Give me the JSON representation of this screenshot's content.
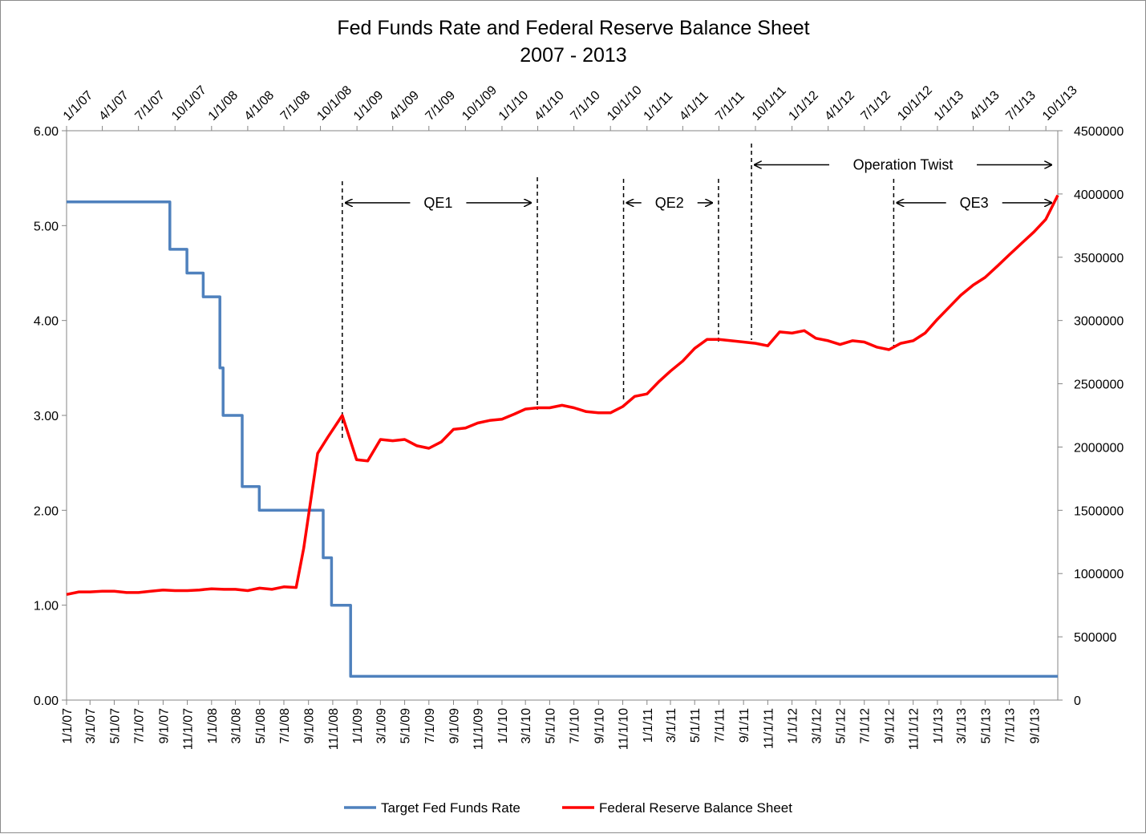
{
  "chart_data": {
    "type": "line",
    "title": "Fed Funds Rate and Federal Reserve Balance Sheet",
    "subtitle": "2007 - 2013",
    "x_start": "2007-01-01",
    "x_end": "2013-10-31",
    "x_bottom_ticks": [
      "1/1/07",
      "3/1/07",
      "5/1/07",
      "7/1/07",
      "9/1/07",
      "11/1/07",
      "1/1/08",
      "3/1/08",
      "5/1/08",
      "7/1/08",
      "9/1/08",
      "11/1/08",
      "1/1/09",
      "3/1/09",
      "5/1/09",
      "7/1/09",
      "9/1/09",
      "11/1/09",
      "1/1/10",
      "3/1/10",
      "5/1/10",
      "7/1/10",
      "9/1/10",
      "11/1/10",
      "1/1/11",
      "3/1/11",
      "5/1/11",
      "7/1/11",
      "9/1/11",
      "11/1/11",
      "1/1/12",
      "3/1/12",
      "5/1/12",
      "7/1/12",
      "9/1/12",
      "11/1/12",
      "1/1/13",
      "3/1/13",
      "5/1/13",
      "7/1/13",
      "9/1/13"
    ],
    "x_top_ticks": [
      "1/1/07",
      "4/1/07",
      "7/1/07",
      "10/1/07",
      "1/1/08",
      "4/1/08",
      "7/1/08",
      "10/1/08",
      "1/1/09",
      "4/1/09",
      "7/1/09",
      "10/1/09",
      "1/1/10",
      "4/1/10",
      "7/1/10",
      "10/1/10",
      "1/1/11",
      "4/1/11",
      "7/1/11",
      "10/1/11",
      "1/1/12",
      "4/1/12",
      "7/1/12",
      "10/1/12",
      "1/1/13",
      "4/1/13",
      "7/1/13",
      "10/1/13"
    ],
    "y_left": {
      "ticks": [
        "0.00",
        "1.00",
        "2.00",
        "3.00",
        "4.00",
        "5.00",
        "6.00"
      ],
      "ylim": [
        0,
        6
      ]
    },
    "y_right": {
      "ticks": [
        "0",
        "500000",
        "1000000",
        "1500000",
        "2000000",
        "2500000",
        "3000000",
        "3500000",
        "4000000",
        "4500000"
      ],
      "ylim": [
        0,
        4500000
      ]
    },
    "grid": false,
    "legend_position": "bottom",
    "series": [
      {
        "name": "Target Fed Funds Rate",
        "color": "#4f81bd",
        "axis": "left",
        "step": true,
        "points": [
          [
            "2007-01-01",
            5.25
          ],
          [
            "2007-09-18",
            4.75
          ],
          [
            "2007-10-31",
            4.5
          ],
          [
            "2007-12-11",
            4.25
          ],
          [
            "2008-01-22",
            3.5
          ],
          [
            "2008-01-30",
            3.0
          ],
          [
            "2008-03-18",
            2.25
          ],
          [
            "2008-04-30",
            2.0
          ],
          [
            "2008-10-08",
            1.5
          ],
          [
            "2008-10-29",
            1.0
          ],
          [
            "2008-12-16",
            0.25
          ],
          [
            "2013-10-31",
            0.25
          ]
        ]
      },
      {
        "name": "Federal Reserve Balance Sheet",
        "color": "#ff0000",
        "axis": "right",
        "step": false,
        "points": [
          [
            "2007-01-01",
            835000
          ],
          [
            "2007-02-01",
            855000
          ],
          [
            "2007-03-01",
            855000
          ],
          [
            "2007-04-01",
            860000
          ],
          [
            "2007-05-01",
            860000
          ],
          [
            "2007-06-01",
            850000
          ],
          [
            "2007-07-01",
            850000
          ],
          [
            "2007-08-01",
            860000
          ],
          [
            "2007-09-01",
            870000
          ],
          [
            "2007-10-01",
            865000
          ],
          [
            "2007-11-01",
            865000
          ],
          [
            "2007-12-01",
            870000
          ],
          [
            "2008-01-01",
            880000
          ],
          [
            "2008-02-01",
            875000
          ],
          [
            "2008-03-01",
            875000
          ],
          [
            "2008-04-01",
            865000
          ],
          [
            "2008-05-01",
            885000
          ],
          [
            "2008-06-01",
            875000
          ],
          [
            "2008-07-01",
            895000
          ],
          [
            "2008-08-01",
            890000
          ],
          [
            "2008-08-20",
            1200000
          ],
          [
            "2008-09-24",
            1950000
          ],
          [
            "2008-10-20",
            2080000
          ],
          [
            "2008-11-25",
            2250000
          ],
          [
            "2008-12-31",
            1900000
          ],
          [
            "2009-01-28",
            1890000
          ],
          [
            "2009-03-01",
            2060000
          ],
          [
            "2009-04-01",
            2050000
          ],
          [
            "2009-05-01",
            2060000
          ],
          [
            "2009-06-01",
            2010000
          ],
          [
            "2009-07-01",
            1990000
          ],
          [
            "2009-08-01",
            2040000
          ],
          [
            "2009-09-01",
            2140000
          ],
          [
            "2009-10-01",
            2150000
          ],
          [
            "2009-11-01",
            2190000
          ],
          [
            "2009-12-01",
            2210000
          ],
          [
            "2010-01-01",
            2220000
          ],
          [
            "2010-02-01",
            2260000
          ],
          [
            "2010-03-01",
            2300000
          ],
          [
            "2010-04-01",
            2310000
          ],
          [
            "2010-05-01",
            2310000
          ],
          [
            "2010-06-01",
            2330000
          ],
          [
            "2010-07-01",
            2310000
          ],
          [
            "2010-08-01",
            2280000
          ],
          [
            "2010-09-01",
            2270000
          ],
          [
            "2010-10-01",
            2270000
          ],
          [
            "2010-11-01",
            2320000
          ],
          [
            "2010-12-01",
            2400000
          ],
          [
            "2011-01-01",
            2420000
          ],
          [
            "2011-02-01",
            2520000
          ],
          [
            "2011-03-01",
            2600000
          ],
          [
            "2011-04-01",
            2680000
          ],
          [
            "2011-05-01",
            2780000
          ],
          [
            "2011-06-01",
            2850000
          ],
          [
            "2011-07-01",
            2850000
          ],
          [
            "2011-08-01",
            2840000
          ],
          [
            "2011-09-01",
            2830000
          ],
          [
            "2011-10-01",
            2820000
          ],
          [
            "2011-11-01",
            2800000
          ],
          [
            "2011-12-01",
            2910000
          ],
          [
            "2012-01-01",
            2900000
          ],
          [
            "2012-02-01",
            2920000
          ],
          [
            "2012-03-01",
            2860000
          ],
          [
            "2012-04-01",
            2840000
          ],
          [
            "2012-05-01",
            2810000
          ],
          [
            "2012-06-01",
            2840000
          ],
          [
            "2012-07-01",
            2830000
          ],
          [
            "2012-08-01",
            2790000
          ],
          [
            "2012-09-01",
            2770000
          ],
          [
            "2012-10-01",
            2820000
          ],
          [
            "2012-11-01",
            2840000
          ],
          [
            "2012-12-01",
            2900000
          ],
          [
            "2013-01-01",
            3010000
          ],
          [
            "2013-02-01",
            3110000
          ],
          [
            "2013-03-01",
            3200000
          ],
          [
            "2013-04-01",
            3280000
          ],
          [
            "2013-05-01",
            3340000
          ],
          [
            "2013-06-01",
            3430000
          ],
          [
            "2013-07-01",
            3520000
          ],
          [
            "2013-08-01",
            3610000
          ],
          [
            "2013-09-01",
            3700000
          ],
          [
            "2013-10-01",
            3800000
          ],
          [
            "2013-10-31",
            3990000
          ]
        ]
      }
    ],
    "markers": [
      {
        "name": "qe1-start",
        "date": "2008-11-25"
      },
      {
        "name": "qe1-end",
        "date": "2010-03-31"
      },
      {
        "name": "qe2-start",
        "date": "2010-11-03"
      },
      {
        "name": "qe2-end",
        "date": "2011-06-30"
      },
      {
        "name": "twist-start",
        "date": "2011-09-21"
      },
      {
        "name": "qe3-start",
        "date": "2012-09-13"
      }
    ],
    "annotations": [
      {
        "id": "qe1",
        "label": "QE1",
        "from": "2008-11-25",
        "to": "2010-03-31",
        "level": 4000000
      },
      {
        "id": "qe2",
        "label": "QE2",
        "from": "2010-11-03",
        "to": "2011-06-30",
        "level": 4000000
      },
      {
        "id": "twist",
        "label": "Operation Twist",
        "from": "2011-09-21",
        "to": "2013-10-31",
        "level": 4300000
      },
      {
        "id": "qe3",
        "label": "QE3",
        "from": "2012-09-13",
        "to": "2013-10-31",
        "level": 4000000
      }
    ]
  }
}
